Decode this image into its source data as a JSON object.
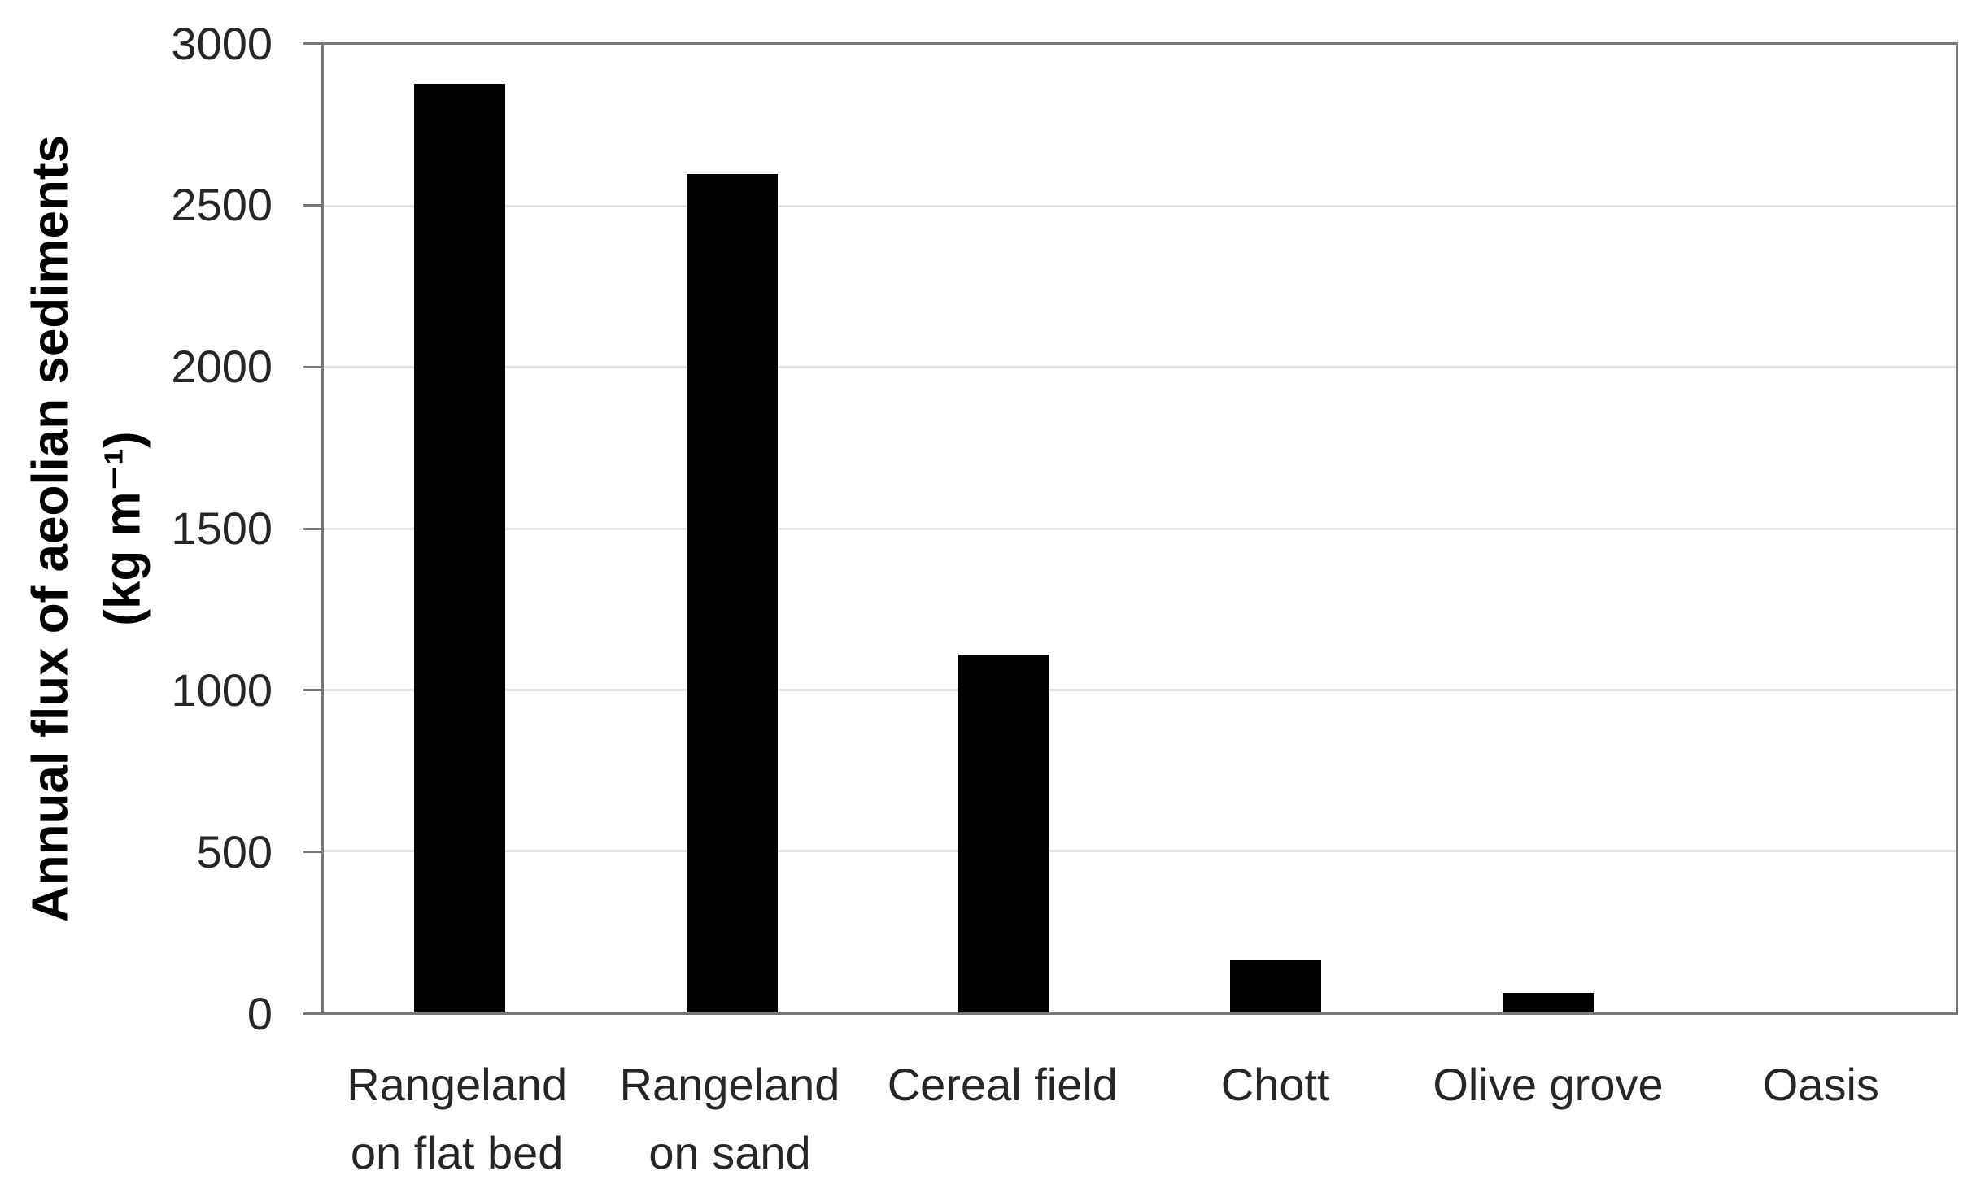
{
  "chart_data": {
    "type": "bar",
    "title": "",
    "xlabel": "",
    "ylabel": "Annual flux of aeolian sediments",
    "ylabel_units": "(kg m⁻¹)",
    "categories": [
      "Rangeland\non flat bed",
      "Rangeland\non sand",
      "Cereal field",
      "Chott",
      "Olive grove",
      "Oasis"
    ],
    "values": [
      2880,
      2600,
      1110,
      165,
      60,
      0
    ],
    "ylim": [
      0,
      3000
    ],
    "yticks": [
      0,
      500,
      1000,
      1500,
      2000,
      2500,
      3000
    ],
    "grid": true,
    "legend": false,
    "colors": {
      "bar": "#000000",
      "axis_border": "#787878",
      "gridline": "#e2e2e2",
      "tick_label": "#262626",
      "title": "#000000"
    }
  }
}
